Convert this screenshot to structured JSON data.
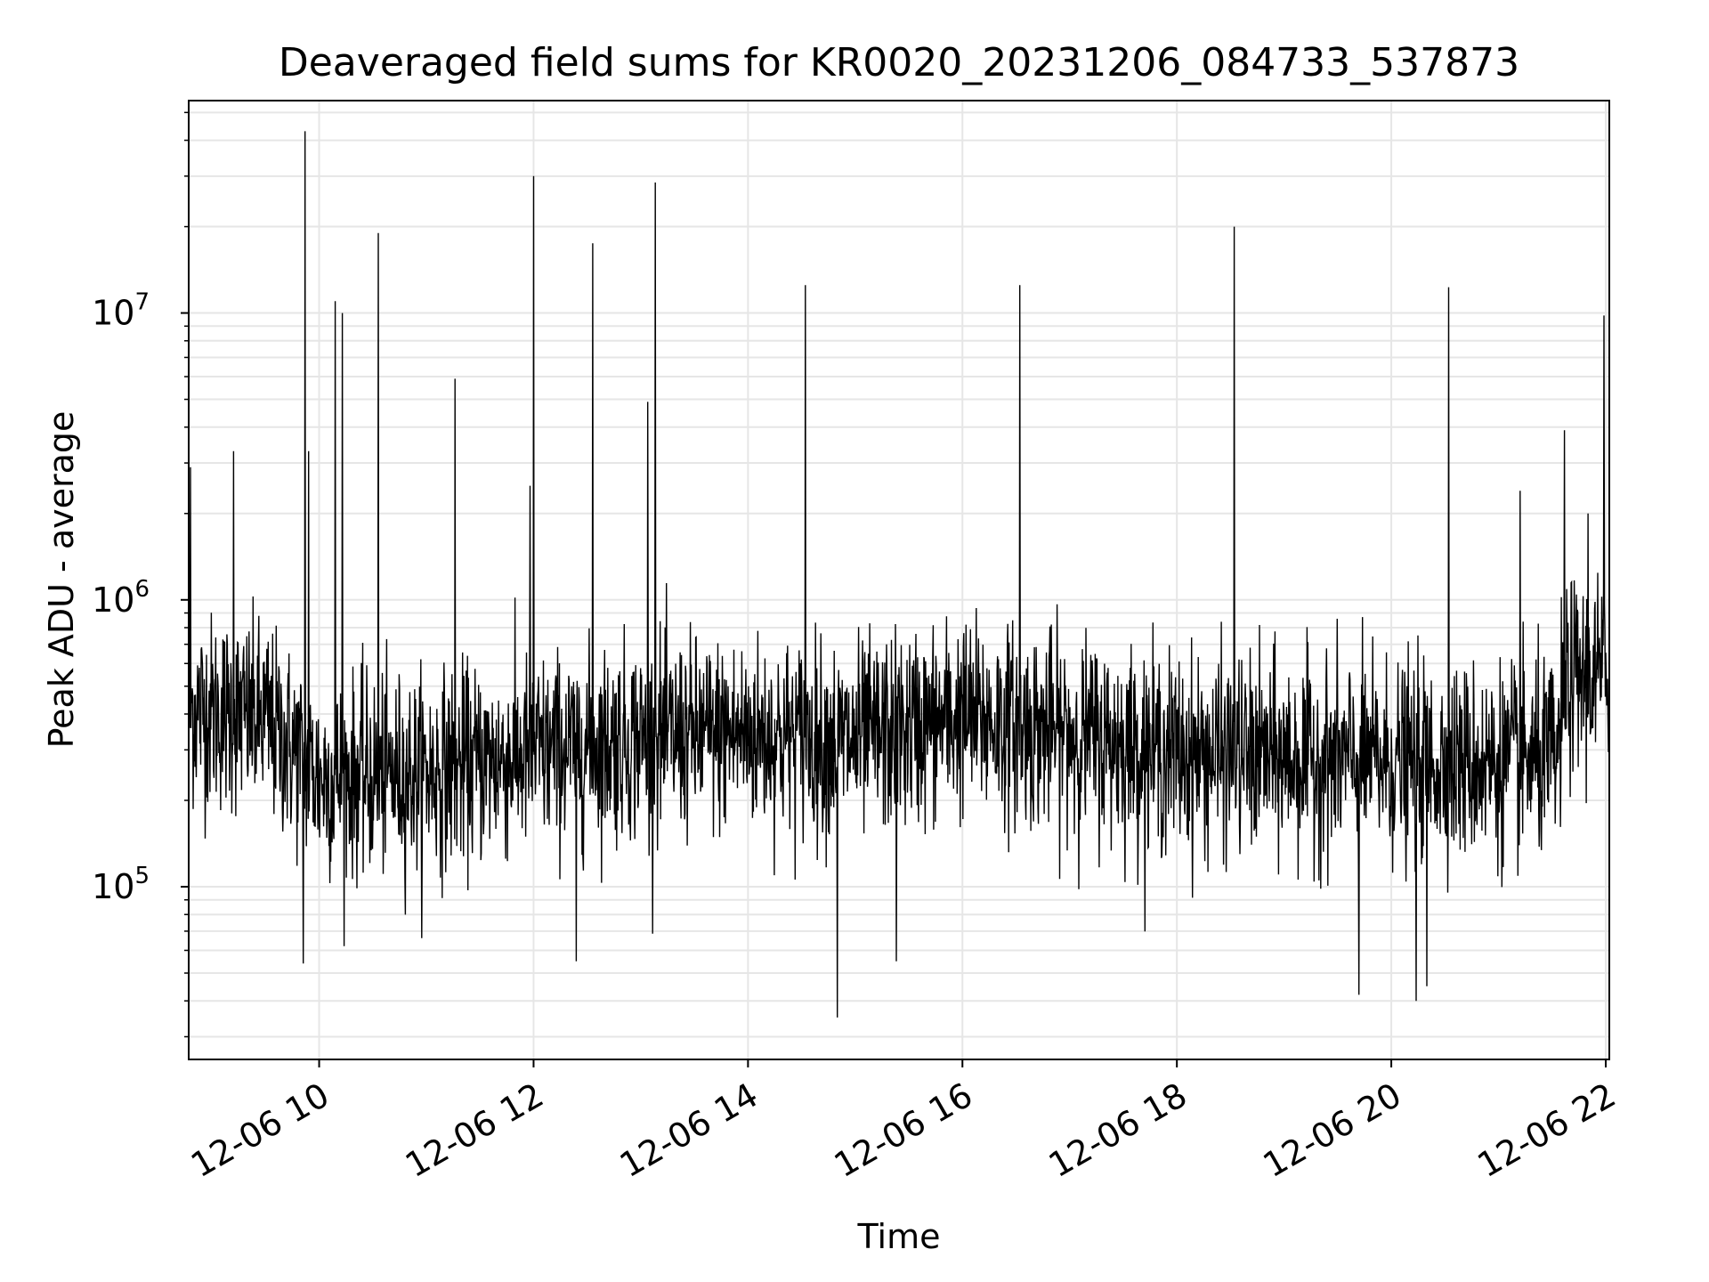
{
  "chart_data": {
    "type": "line",
    "title": "Deaveraged field sums for KR0020_20231206_084733_537873",
    "xlabel": "Time",
    "ylabel": "Peak ADU - average",
    "yscale": "log",
    "x_start": "2023-12-06 08:47",
    "x_end": "2023-12-06 22:02",
    "xlim": [
      "2023-12-06 08:47",
      "2023-12-06 22:02"
    ],
    "ylim": [
      25000,
      55000000
    ],
    "x_ticks": [
      "12-06 10",
      "12-06 12",
      "12-06 14",
      "12-06 16",
      "12-06 18",
      "12-06 20",
      "12-06 22"
    ],
    "x_tick_hours": [
      10,
      12,
      14,
      16,
      18,
      20,
      22
    ],
    "y_ticks": [
      {
        "value": 100000,
        "base": "10",
        "exp": "5"
      },
      {
        "value": 1000000,
        "base": "10",
        "exp": "6"
      },
      {
        "value": 10000000,
        "base": "10",
        "exp": "7"
      }
    ],
    "grid": true,
    "legend": "none",
    "line_color": "#000000",
    "grid_color": "#e6e6e6",
    "baseline": [
      {
        "time": "2023-12-06 08:47",
        "value": 420000
      },
      {
        "time": "2023-12-06 09:30",
        "value": 380000
      },
      {
        "time": "2023-12-06 10:00",
        "value": 240000
      },
      {
        "time": "2023-12-06 11:00",
        "value": 250000
      },
      {
        "time": "2023-12-06 12:00",
        "value": 290000
      },
      {
        "time": "2023-12-06 13:00",
        "value": 330000
      },
      {
        "time": "2023-12-06 14:00",
        "value": 340000
      },
      {
        "time": "2023-12-06 15:00",
        "value": 320000
      },
      {
        "time": "2023-12-06 16:00",
        "value": 390000
      },
      {
        "time": "2023-12-06 17:00",
        "value": 340000
      },
      {
        "time": "2023-12-06 18:00",
        "value": 290000
      },
      {
        "time": "2023-12-06 19:00",
        "value": 280000
      },
      {
        "time": "2023-12-06 20:00",
        "value": 270000
      },
      {
        "time": "2023-12-06 21:00",
        "value": 270000
      },
      {
        "time": "2023-12-06 21:33",
        "value": 280000
      },
      {
        "time": "2023-12-06 21:38",
        "value": 520000
      },
      {
        "time": "2023-12-06 22:02",
        "value": 560000
      }
    ],
    "spikes": [
      {
        "time": "2023-12-06 08:48",
        "value": 2900000
      },
      {
        "time": "2023-12-06 09:12",
        "value": 3300000
      },
      {
        "time": "2023-12-06 09:52",
        "value": 43000000
      },
      {
        "time": "2023-12-06 09:54",
        "value": 3300000
      },
      {
        "time": "2023-12-06 10:09",
        "value": 11000000
      },
      {
        "time": "2023-12-06 10:13",
        "value": 10000000
      },
      {
        "time": "2023-12-06 10:33",
        "value": 19000000
      },
      {
        "time": "2023-12-06 11:16",
        "value": 5900000
      },
      {
        "time": "2023-12-06 11:58",
        "value": 2500000
      },
      {
        "time": "2023-12-06 12:00",
        "value": 30000000
      },
      {
        "time": "2023-12-06 12:33",
        "value": 17500000
      },
      {
        "time": "2023-12-06 13:04",
        "value": 4900000
      },
      {
        "time": "2023-12-06 13:08",
        "value": 28500000
      },
      {
        "time": "2023-12-06 14:32",
        "value": 12500000
      },
      {
        "time": "2023-12-06 16:32",
        "value": 12500000
      },
      {
        "time": "2023-12-06 18:32",
        "value": 20000000
      },
      {
        "time": "2023-12-06 20:32",
        "value": 12300000
      },
      {
        "time": "2023-12-06 21:12",
        "value": 2400000
      },
      {
        "time": "2023-12-06 21:37",
        "value": 3900000
      },
      {
        "time": "2023-12-06 21:50",
        "value": 2000000
      },
      {
        "time": "2023-12-06 21:59",
        "value": 9800000
      }
    ],
    "dips": [
      {
        "time": "2023-12-06 09:51",
        "value": 54000.0
      },
      {
        "time": "2023-12-06 12:24",
        "value": 55000
      },
      {
        "time": "2023-12-06 14:50",
        "value": 35000
      },
      {
        "time": "2023-12-06 15:23",
        "value": 55000
      },
      {
        "time": "2023-12-06 19:42",
        "value": 42000
      },
      {
        "time": "2023-12-06 20:14",
        "value": 40000
      },
      {
        "time": "2023-12-06 20:20",
        "value": 45000
      }
    ]
  }
}
